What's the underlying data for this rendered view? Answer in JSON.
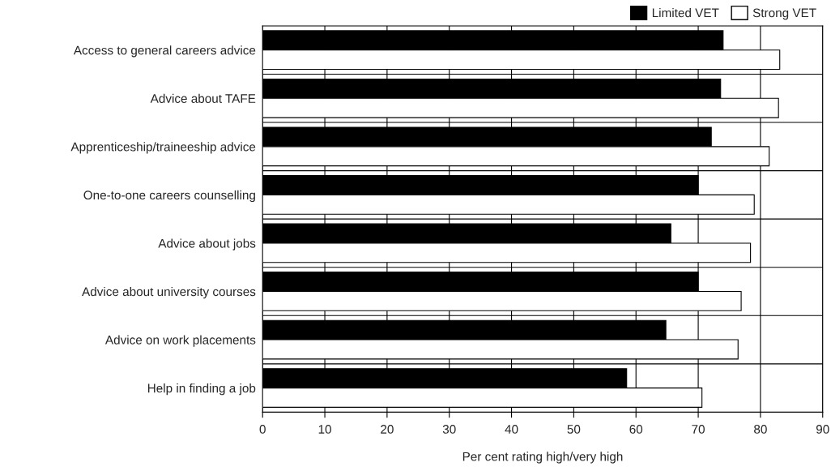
{
  "chart_data": {
    "type": "bar",
    "orientation": "horizontal",
    "xlabel": "Per cent rating high/very high",
    "categories": [
      "Access to general careers advice",
      "Advice about TAFE",
      "Apprenticeship/traineeship advice",
      "One-to-one careers counselling",
      "Advice about jobs",
      "Advice about university courses",
      "Advice on work placements",
      "Help in finding a job"
    ],
    "series": [
      {
        "name": "Limited VET",
        "color": "#000000",
        "values": [
          74.0,
          73.6,
          72.1,
          70.0,
          65.6,
          70.0,
          64.8,
          58.5
        ]
      },
      {
        "name": "Strong VET",
        "color": "#ffffff",
        "values": [
          83.1,
          82.9,
          81.4,
          79.0,
          78.4,
          76.9,
          76.4,
          70.6
        ]
      }
    ],
    "xlim": [
      0,
      90
    ],
    "xticks": [
      0,
      10,
      20,
      30,
      40,
      50,
      60,
      70,
      80,
      90
    ],
    "grid": true,
    "legend": "top right"
  }
}
